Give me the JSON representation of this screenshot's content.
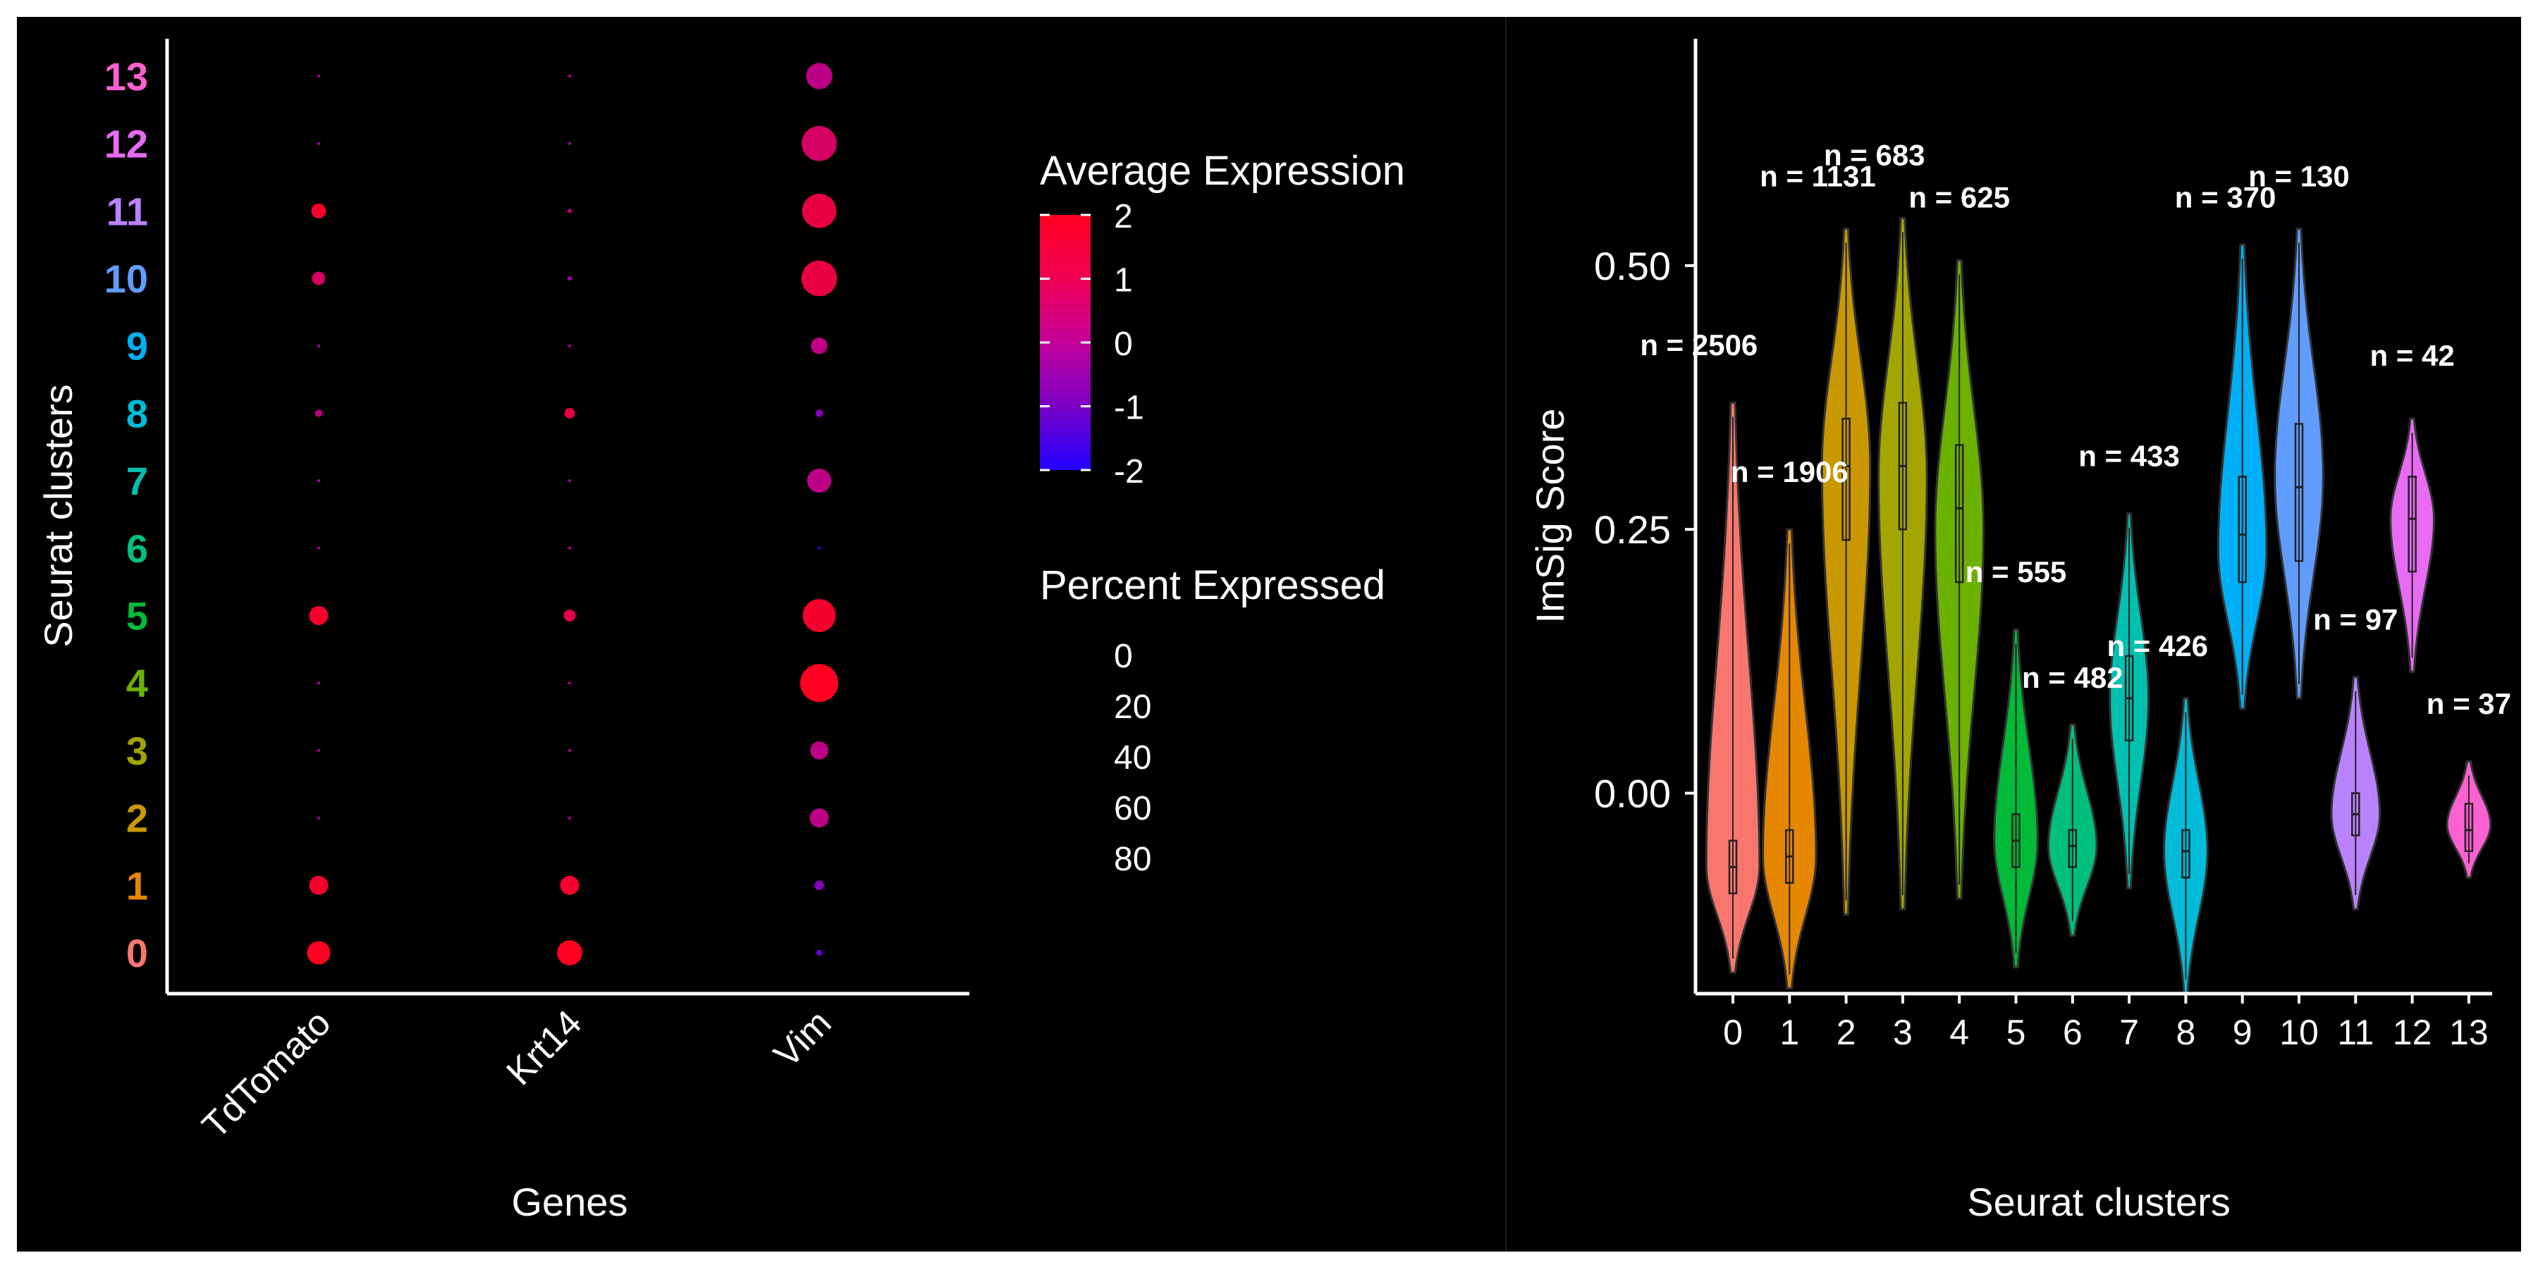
{
  "chart_data": [
    {
      "type": "dotplot",
      "xlabel": "Genes",
      "ylabel": "Seurat clusters",
      "genes": [
        "TdTomato",
        "Krt14",
        "Vim"
      ],
      "clusters": [
        "0",
        "1",
        "2",
        "3",
        "4",
        "5",
        "6",
        "7",
        "8",
        "9",
        "10",
        "11",
        "12",
        "13"
      ],
      "cluster_label_colors": [
        "#f8766d",
        "#e58700",
        "#c99800",
        "#a3a500",
        "#6bb100",
        "#00ba38",
        "#00bf7d",
        "#00c0af",
        "#00bcd8",
        "#00b0f6",
        "#619cff",
        "#b983ff",
        "#e76bf3",
        "#fd61d1"
      ],
      "percent_expressed": {
        "TdTomato": [
          30,
          20,
          0.5,
          0.5,
          0.5,
          20,
          0.5,
          0.5,
          3,
          0.5,
          10,
          12,
          0.5,
          0.5
        ],
        "Krt14": [
          35,
          20,
          0.5,
          0.5,
          0.5,
          8,
          0.5,
          0.5,
          6,
          0.5,
          1,
          1,
          0.5,
          0.5
        ],
        "Vim": [
          2,
          5,
          20,
          18,
          80,
          60,
          0.5,
          32,
          3,
          15,
          70,
          65,
          68,
          38
        ]
      },
      "average_expression": {
        "TdTomato": [
          2,
          1.8,
          0,
          0,
          0,
          1.8,
          0,
          0,
          0.5,
          0,
          1,
          1.8,
          0,
          0
        ],
        "Krt14": [
          2,
          1.8,
          0,
          0,
          0,
          1.3,
          0,
          0,
          1.5,
          0,
          0,
          0.5,
          0,
          0
        ],
        "Vim": [
          -1,
          -0.5,
          0.5,
          0.5,
          2,
          1.8,
          -2,
          0.5,
          -0.5,
          0.5,
          1.5,
          1.5,
          1,
          0.5
        ]
      },
      "legend": {
        "color_title": "Average Expression",
        "color_ticks": [
          "2",
          "1",
          "0",
          "-1",
          "-2"
        ],
        "color_range": [
          -2,
          2
        ],
        "colors": {
          "low": "#2200ff",
          "mid": "#a800a8",
          "high": "#ff0020"
        },
        "size_title": "Percent Expressed",
        "size_ticks": [
          "0",
          "20",
          "40",
          "60",
          "80"
        ]
      }
    },
    {
      "type": "violin",
      "xlabel": "Seurat clusters",
      "ylabel": "ImSig Score",
      "categories": [
        "0",
        "1",
        "2",
        "3",
        "4",
        "5",
        "6",
        "7",
        "8",
        "9",
        "10",
        "11",
        "12",
        "13"
      ],
      "ylim": [
        -0.19,
        0.715
      ],
      "y_ticks": [
        "0.00",
        "0.25",
        "0.50"
      ],
      "y_tick_values": [
        0,
        0.25,
        0.5
      ],
      "colors": [
        "#f8766d",
        "#e58700",
        "#c99800",
        "#a3a500",
        "#6bb100",
        "#00ba38",
        "#00bf7d",
        "#00c0af",
        "#00bcd8",
        "#00b0f6",
        "#619cff",
        "#b983ff",
        "#e76bf3",
        "#fd61d1"
      ],
      "violins": [
        {
          "min": -0.17,
          "q1": -0.095,
          "median": -0.07,
          "q3": -0.045,
          "max": 0.37,
          "peak": -0.07,
          "width": 0.55
        },
        {
          "min": -0.185,
          "q1": -0.085,
          "median": -0.06,
          "q3": -0.035,
          "max": 0.25,
          "peak": -0.06,
          "width": 0.55
        },
        {
          "min": -0.115,
          "q1": 0.24,
          "median": 0.31,
          "q3": 0.355,
          "max": 0.535,
          "peak": 0.31,
          "width": 0.5
        },
        {
          "min": -0.11,
          "q1": 0.25,
          "median": 0.31,
          "q3": 0.37,
          "max": 0.545,
          "peak": 0.3,
          "width": 0.5
        },
        {
          "min": -0.1,
          "q1": 0.2,
          "median": 0.27,
          "q3": 0.33,
          "max": 0.505,
          "peak": 0.25,
          "width": 0.5
        },
        {
          "min": -0.165,
          "q1": -0.07,
          "median": -0.045,
          "q3": -0.02,
          "max": 0.155,
          "peak": -0.045,
          "width": 0.45
        },
        {
          "min": -0.135,
          "q1": -0.07,
          "median": -0.05,
          "q3": -0.035,
          "max": 0.065,
          "peak": -0.05,
          "width": 0.5
        },
        {
          "min": -0.09,
          "q1": 0.05,
          "median": 0.09,
          "q3": 0.13,
          "max": 0.265,
          "peak": 0.09,
          "width": 0.4
        },
        {
          "min": -0.19,
          "q1": -0.08,
          "median": -0.055,
          "q3": -0.035,
          "max": 0.09,
          "peak": -0.055,
          "width": 0.45
        },
        {
          "min": 0.08,
          "q1": 0.2,
          "median": 0.245,
          "q3": 0.3,
          "max": 0.52,
          "peak": 0.23,
          "width": 0.5
        },
        {
          "min": 0.09,
          "q1": 0.22,
          "median": 0.29,
          "q3": 0.35,
          "max": 0.535,
          "peak": 0.3,
          "width": 0.5
        },
        {
          "min": -0.11,
          "q1": -0.04,
          "median": -0.02,
          "q3": 0.0,
          "max": 0.11,
          "peak": -0.02,
          "width": 0.5
        },
        {
          "min": 0.115,
          "q1": 0.21,
          "median": 0.26,
          "q3": 0.3,
          "max": 0.355,
          "peak": 0.26,
          "width": 0.45
        },
        {
          "min": -0.08,
          "q1": -0.055,
          "median": -0.035,
          "q3": -0.01,
          "max": 0.03,
          "peak": -0.03,
          "width": 0.45
        }
      ],
      "count_labels": [
        {
          "text": "n = 2506",
          "cluster": 0,
          "y": 0.415,
          "dx": -0.6
        },
        {
          "text": "n = 1906",
          "cluster": 1,
          "y": 0.295,
          "dx": 0
        },
        {
          "text": "n = 1131",
          "cluster": 2,
          "y": 0.575,
          "dx": -0.5
        },
        {
          "text": "n = 683",
          "cluster": 3,
          "y": 0.595,
          "dx": -0.5
        },
        {
          "text": "n = 625",
          "cluster": 4,
          "y": 0.555,
          "dx": 0
        },
        {
          "text": "n = 555",
          "cluster": 5,
          "y": 0.2,
          "dx": 0
        },
        {
          "text": "n = 482",
          "cluster": 6,
          "y": 0.1,
          "dx": 0
        },
        {
          "text": "n = 433",
          "cluster": 7,
          "y": 0.31,
          "dx": 0
        },
        {
          "text": "n = 426",
          "cluster": 8,
          "y": 0.13,
          "dx": -0.5
        },
        {
          "text": "n = 370",
          "cluster": 9,
          "y": 0.555,
          "dx": -0.3
        },
        {
          "text": "n = 130",
          "cluster": 10,
          "y": 0.575,
          "dx": 0
        },
        {
          "text": "n = 97",
          "cluster": 11,
          "y": 0.155,
          "dx": 0
        },
        {
          "text": "n = 42",
          "cluster": 12,
          "y": 0.405,
          "dx": 0
        },
        {
          "text": "n = 37",
          "cluster": 13,
          "y": 0.075,
          "dx": 0
        }
      ]
    }
  ]
}
